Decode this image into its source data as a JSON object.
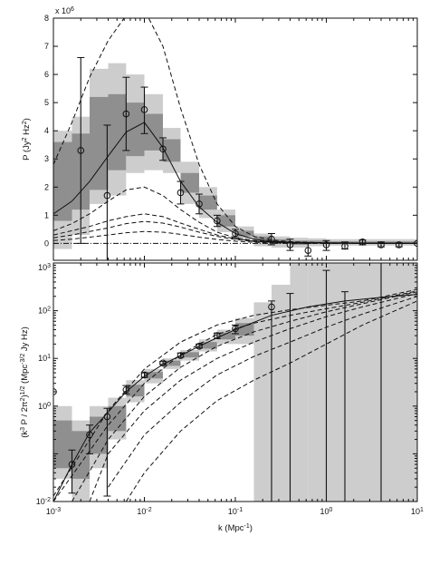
{
  "chart_data": [
    {
      "type": "line",
      "panel": "top",
      "xscale": "log",
      "xlim": [
        0.001,
        10
      ],
      "ylim": [
        -0.6,
        8
      ],
      "exponent_label": "x 10",
      "exponent_sup": "6",
      "ylabel": "P (Jy",
      "ylabel_sup1": "2",
      "ylabel_mid": " Hz",
      "ylabel_sup2": "2",
      "ylabel_end": ")",
      "yticks": [
        0,
        1,
        2,
        3,
        4,
        5,
        6,
        7,
        8
      ],
      "ytick_labels": [
        "0",
        "1",
        "2",
        "3",
        "4",
        "5",
        "6",
        "7",
        "8"
      ],
      "bands": [
        {
          "x0": 0.001,
          "x1": 0.0016,
          "y1": [
            -0.2,
            4.0
          ],
          "y2": [
            0.8,
            3.6
          ]
        },
        {
          "x0": 0.0016,
          "x1": 0.0025,
          "y1": [
            0.3,
            4.5
          ],
          "y2": [
            1.2,
            3.9
          ]
        },
        {
          "x0": 0.0025,
          "x1": 0.004,
          "y1": [
            1.4,
            6.2
          ],
          "y2": [
            1.9,
            5.2
          ]
        },
        {
          "x0": 0.004,
          "x1": 0.0063,
          "y1": [
            1.7,
            6.4
          ],
          "y2": [
            2.6,
            5.3
          ]
        },
        {
          "x0": 0.0063,
          "x1": 0.01,
          "y1": [
            2.5,
            6.0
          ],
          "y2": [
            3.1,
            5.0
          ]
        },
        {
          "x0": 0.01,
          "x1": 0.016,
          "y1": [
            2.6,
            5.3
          ],
          "y2": [
            3.3,
            4.6
          ]
        },
        {
          "x0": 0.016,
          "x1": 0.025,
          "y1": [
            2.5,
            4.1
          ],
          "y2": [
            2.9,
            3.7
          ]
        },
        {
          "x0": 0.025,
          "x1": 0.04,
          "y1": [
            1.4,
            2.9
          ],
          "y2": [
            1.8,
            2.5
          ]
        },
        {
          "x0": 0.04,
          "x1": 0.063,
          "y1": [
            0.9,
            2.0
          ],
          "y2": [
            1.2,
            1.7
          ]
        },
        {
          "x0": 0.063,
          "x1": 0.1,
          "y1": [
            0.4,
            1.2
          ],
          "y2": [
            0.6,
            1.0
          ]
        },
        {
          "x0": 0.1,
          "x1": 0.16,
          "y1": [
            0.15,
            0.6
          ],
          "y2": [
            0.25,
            0.45
          ]
        },
        {
          "x0": 0.16,
          "x1": 0.25,
          "y1": [
            -0.1,
            0.35
          ],
          "y2": [
            0.05,
            0.25
          ]
        },
        {
          "x0": 0.25,
          "x1": 0.4,
          "y1": [
            -0.15,
            0.25
          ],
          "y2": [
            0.0,
            0.15
          ]
        },
        {
          "x0": 0.4,
          "x1": 0.63,
          "y1": [
            -0.15,
            0.2
          ],
          "y2": [
            -0.05,
            0.1
          ]
        },
        {
          "x0": 0.63,
          "x1": 1.0,
          "y1": [
            -0.1,
            0.18
          ],
          "y2": [
            0.0,
            0.1
          ]
        },
        {
          "x0": 1.0,
          "x1": 10,
          "y1": [
            -0.08,
            0.15
          ],
          "y2": [
            -0.02,
            0.07
          ]
        }
      ],
      "points": [
        {
          "x": 0.002,
          "y": 3.3,
          "lo": 0.0,
          "hi": 6.6
        },
        {
          "x": 0.0039,
          "y": 1.7,
          "lo": -0.8,
          "hi": 4.2
        },
        {
          "x": 0.0063,
          "y": 4.6,
          "lo": 3.3,
          "hi": 5.9
        },
        {
          "x": 0.01,
          "y": 4.75,
          "lo": 3.9,
          "hi": 5.55
        },
        {
          "x": 0.016,
          "y": 3.35,
          "lo": 2.95,
          "hi": 3.75
        },
        {
          "x": 0.025,
          "y": 1.8,
          "lo": 1.4,
          "hi": 2.2
        },
        {
          "x": 0.04,
          "y": 1.4,
          "lo": 1.05,
          "hi": 1.75
        },
        {
          "x": 0.063,
          "y": 0.8,
          "lo": 0.6,
          "hi": 1.0
        },
        {
          "x": 0.1,
          "y": 0.35,
          "lo": 0.2,
          "hi": 0.5
        },
        {
          "x": 0.25,
          "y": 0.15,
          "lo": -0.05,
          "hi": 0.35
        },
        {
          "x": 0.4,
          "y": -0.05,
          "lo": -0.25,
          "hi": 0.15
        },
        {
          "x": 0.63,
          "y": -0.25,
          "lo": -0.45,
          "hi": 0.0
        },
        {
          "x": 1.0,
          "y": -0.05,
          "lo": -0.25,
          "hi": 0.1
        },
        {
          "x": 1.6,
          "y": -0.1,
          "lo": -0.2,
          "hi": 0.05
        },
        {
          "x": 2.5,
          "y": 0.05,
          "lo": -0.05,
          "hi": 0.12
        },
        {
          "x": 4.0,
          "y": -0.05,
          "lo": -0.12,
          "hi": 0.05
        },
        {
          "x": 6.3,
          "y": -0.05,
          "lo": -0.12,
          "hi": 0.02
        },
        {
          "x": 10.0,
          "y": 0.0,
          "lo": 0.0,
          "hi": 0.0
        }
      ],
      "model_curves": [
        {
          "style": "solid",
          "x": [
            0.001,
            0.0016,
            0.0025,
            0.004,
            0.0063,
            0.01,
            0.016,
            0.025,
            0.04,
            0.063,
            0.1,
            0.16,
            0.25,
            0.4,
            1.0,
            10
          ],
          "y": [
            1.05,
            1.5,
            2.2,
            3.1,
            3.95,
            4.3,
            3.4,
            2.2,
            1.3,
            0.75,
            0.35,
            0.15,
            0.08,
            0.04,
            0.02,
            0.0
          ]
        },
        {
          "style": "dashed",
          "x": [
            0.001,
            0.0016,
            0.0025,
            0.004,
            0.0063,
            0.01,
            0.016,
            0.025,
            0.04,
            0.063,
            0.1,
            0.16,
            0.25,
            0.4,
            1.0,
            10
          ],
          "y": [
            2.8,
            4.3,
            5.9,
            7.2,
            8.1,
            8.3,
            7.0,
            4.8,
            2.8,
            1.4,
            0.6,
            0.25,
            0.12,
            0.06,
            0.02,
            0.0
          ]
        },
        {
          "style": "dashed",
          "x": [
            0.001,
            0.0016,
            0.0025,
            0.004,
            0.0063,
            0.01,
            0.016,
            0.025,
            0.04,
            0.063,
            0.1,
            0.16,
            0.25,
            0.4,
            1.0,
            10
          ],
          "y": [
            0.45,
            0.7,
            1.05,
            1.5,
            1.9,
            2.0,
            1.7,
            1.2,
            0.75,
            0.4,
            0.2,
            0.1,
            0.06,
            0.03,
            0.01,
            0.0
          ]
        },
        {
          "style": "dashed",
          "x": [
            0.001,
            0.0016,
            0.0025,
            0.004,
            0.0063,
            0.01,
            0.016,
            0.025,
            0.04,
            0.063,
            0.1,
            0.16,
            0.25,
            0.4,
            1.0,
            10
          ],
          "y": [
            0.3,
            0.45,
            0.6,
            0.8,
            0.95,
            1.05,
            0.95,
            0.72,
            0.5,
            0.3,
            0.16,
            0.08,
            0.05,
            0.03,
            0.01,
            0.0
          ]
        },
        {
          "style": "dashed",
          "x": [
            0.001,
            0.0016,
            0.0025,
            0.004,
            0.0063,
            0.01,
            0.016,
            0.025,
            0.04,
            0.063,
            0.1,
            0.16,
            0.25,
            0.4,
            1.0,
            10
          ],
          "y": [
            0.2,
            0.3,
            0.42,
            0.55,
            0.7,
            0.78,
            0.72,
            0.58,
            0.4,
            0.25,
            0.14,
            0.07,
            0.04,
            0.02,
            0.01,
            0.0
          ]
        },
        {
          "style": "dashed",
          "x": [
            0.001,
            0.0016,
            0.0025,
            0.004,
            0.0063,
            0.01,
            0.016,
            0.025,
            0.04,
            0.063,
            0.1,
            0.16,
            0.25,
            0.4,
            1.0,
            10
          ],
          "y": [
            0.1,
            0.15,
            0.22,
            0.3,
            0.38,
            0.42,
            0.4,
            0.32,
            0.22,
            0.14,
            0.08,
            0.04,
            0.02,
            0.01,
            0.0,
            0.0
          ]
        },
        {
          "style": "dashdot",
          "x": [
            0.001,
            10
          ],
          "y": [
            0.0,
            0.0
          ]
        }
      ]
    },
    {
      "type": "line",
      "panel": "bottom",
      "xscale": "log",
      "yscale": "log",
      "xlim": [
        0.001,
        10
      ],
      "ylim": [
        0.01,
        1000
      ],
      "xlabel": "k (Mpc",
      "xlabel_sup": "-1",
      "xlabel_end": ")",
      "ylabel": "(k",
      "ylabel_sup1": "3",
      "ylabel_mid": " P / 2π",
      "ylabel_sup2": "2",
      "ylabel_mid2": ")",
      "ylabel_sup3": "1/2",
      "ylabel_end": " (Mpc",
      "ylabel_sup4": "-3/2",
      "ylabel_tail": " Jy Hz)",
      "xticks": [
        0.001,
        0.01,
        0.1,
        1,
        10
      ],
      "xtick_base": "10",
      "xtick_exps": [
        "-3",
        "-2",
        "-1",
        "0",
        "1"
      ],
      "yticks": [
        0.01,
        1,
        100
      ],
      "ytick_base": "10",
      "ytick_exps": [
        "-2",
        "0",
        "2"
      ],
      "ytop_label_base": "10",
      "ytop_label_exp": "3",
      "ymid_label_base": "10",
      "ymid_label_exp": "1",
      "bands": [
        {
          "x0": 0.001,
          "x1": 0.0016,
          "y1": [
            0.03,
            1.0
          ],
          "y2": [
            0.05,
            0.5
          ]
        },
        {
          "x0": 0.0016,
          "x1": 0.0025,
          "y1": [
            0.01,
            0.5
          ],
          "y2": [
            0.03,
            0.3
          ]
        },
        {
          "x0": 0.0025,
          "x1": 0.004,
          "y1": [
            0.05,
            1.0
          ],
          "y2": [
            0.1,
            0.6
          ]
        },
        {
          "x0": 0.004,
          "x1": 0.0063,
          "y1": [
            0.2,
            1.5
          ],
          "y2": [
            0.3,
            1.0
          ]
        },
        {
          "x0": 0.0063,
          "x1": 0.01,
          "y1": [
            1.2,
            3.5
          ],
          "y2": [
            1.6,
            2.8
          ]
        },
        {
          "x0": 0.01,
          "x1": 0.016,
          "y1": [
            3.0,
            6.0
          ],
          "y2": [
            3.8,
            5.2
          ]
        },
        {
          "x0": 0.016,
          "x1": 0.025,
          "y1": [
            6.0,
            10.0
          ],
          "y2": [
            7.0,
            9.0
          ]
        },
        {
          "x0": 0.025,
          "x1": 0.04,
          "y1": [
            9.0,
            15.0
          ],
          "y2": [
            10.5,
            13.5
          ]
        },
        {
          "x0": 0.04,
          "x1": 0.063,
          "y1": [
            14.0,
            25.0
          ],
          "y2": [
            16.0,
            22.0
          ]
        },
        {
          "x0": 0.063,
          "x1": 0.1,
          "y1": [
            20.0,
            40.0
          ],
          "y2": [
            25.0,
            35.0
          ]
        },
        {
          "x0": 0.1,
          "x1": 0.16,
          "y1": [
            20.0,
            70.0
          ],
          "y2": [
            30.0,
            55.0
          ]
        },
        {
          "x0": 0.16,
          "x1": 0.25,
          "y1": [
            0.01,
            150.0
          ],
          "y2": [
            0.01,
            0.01
          ]
        },
        {
          "x0": 0.25,
          "x1": 0.4,
          "y1": [
            0.01,
            350.0
          ],
          "y2": [
            0.01,
            0.01
          ]
        },
        {
          "x0": 0.4,
          "x1": 0.63,
          "y1": [
            0.01,
            1000.0
          ],
          "y2": [
            0.01,
            0.01
          ]
        },
        {
          "x0": 0.63,
          "x1": 4.0,
          "y1": [
            0.01,
            1000.0
          ],
          "y2": [
            0.01,
            0.01
          ]
        },
        {
          "x0": 4.0,
          "x1": 10,
          "y1": [
            0.01,
            1000.0
          ],
          "y2": [
            0.01,
            0.01
          ]
        }
      ],
      "points": [
        {
          "x": 0.001,
          "y": 2.0,
          "lo": 2.0,
          "hi": 2.0
        },
        {
          "x": 0.0016,
          "y": 0.06,
          "lo": 0.015,
          "hi": 0.12
        },
        {
          "x": 0.0025,
          "y": 0.25,
          "lo": 0.1,
          "hi": 0.4
        },
        {
          "x": 0.0039,
          "y": 0.6,
          "lo": 0.013,
          "hi": 0.9
        },
        {
          "x": 0.0063,
          "y": 2.2,
          "lo": 1.8,
          "hi": 2.7
        },
        {
          "x": 0.01,
          "y": 4.5,
          "lo": 4.0,
          "hi": 5.0
        },
        {
          "x": 0.016,
          "y": 8.0,
          "lo": 7.5,
          "hi": 8.6
        },
        {
          "x": 0.025,
          "y": 11.5,
          "lo": 10.5,
          "hi": 13.0
        },
        {
          "x": 0.04,
          "y": 18.0,
          "lo": 16.5,
          "hi": 20.0
        },
        {
          "x": 0.063,
          "y": 30.0,
          "lo": 26.0,
          "hi": 34.0
        },
        {
          "x": 0.1,
          "y": 42.0,
          "lo": 33.0,
          "hi": 50.0
        },
        {
          "x": 0.25,
          "y": 120.0,
          "lo": 0.01,
          "hi": 160.0
        },
        {
          "x": 0.4,
          "y": 0.01,
          "lo": 0.01,
          "hi": 230.0
        },
        {
          "x": 1.0,
          "y": 0.01,
          "lo": 0.01,
          "hi": 700.0
        },
        {
          "x": 1.6,
          "y": 0.01,
          "lo": 0.01,
          "hi": 250.0
        },
        {
          "x": 4.0,
          "y": 0.01,
          "lo": 0.01,
          "hi": 1000.0
        }
      ],
      "model_curves": [
        {
          "style": "solid",
          "x": [
            0.001,
            0.0016,
            0.0025,
            0.004,
            0.0063,
            0.01,
            0.016,
            0.025,
            0.04,
            0.063,
            0.1,
            0.25,
            0.63,
            1.6,
            4.0,
            10
          ],
          "y": [
            0.01,
            0.06,
            0.28,
            0.75,
            2.0,
            4.2,
            7.5,
            11.5,
            18.0,
            27.0,
            40.0,
            80.0,
            120.0,
            160.0,
            190.0,
            220.0
          ]
        },
        {
          "style": "dashed",
          "x": [
            0.001,
            0.004,
            0.01,
            0.025,
            0.063,
            0.16,
            0.4,
            1.0,
            2.5,
            10
          ],
          "y": [
            0.013,
            0.8,
            6.0,
            22.0,
            50.0,
            80.0,
            105.0,
            130.0,
            160.0,
            280.0
          ]
        },
        {
          "style": "dashed",
          "x": [
            0.001,
            0.004,
            0.01,
            0.025,
            0.063,
            0.16,
            0.4,
            1.0,
            2.5,
            10
          ],
          "y": [
            0.01,
            0.4,
            3.0,
            12.0,
            32.0,
            55.0,
            80.0,
            110.0,
            150.0,
            260.0
          ]
        },
        {
          "style": "dashed",
          "x": [
            0.0016,
            0.004,
            0.01,
            0.025,
            0.063,
            0.16,
            0.4,
            1.0,
            2.5,
            10
          ],
          "y": [
            0.01,
            0.2,
            1.6,
            6.5,
            18.0,
            36.0,
            60.0,
            95.0,
            140.0,
            250.0
          ]
        },
        {
          "style": "dashed",
          "x": [
            0.0025,
            0.004,
            0.01,
            0.025,
            0.063,
            0.16,
            0.4,
            1.0,
            2.5,
            10
          ],
          "y": [
            0.01,
            0.1,
            0.8,
            3.5,
            10.0,
            22.0,
            42.0,
            75.0,
            120.0,
            230.0
          ]
        },
        {
          "style": "dashed",
          "x": [
            0.004,
            0.01,
            0.025,
            0.063,
            0.16,
            0.4,
            1.0,
            2.5,
            10
          ],
          "y": [
            0.02,
            0.25,
            1.2,
            4.5,
            11.0,
            22.0,
            45.0,
            85.0,
            200.0
          ]
        },
        {
          "style": "dashed",
          "x": [
            0.0063,
            0.01,
            0.025,
            0.063,
            0.16,
            0.4,
            1.0,
            2.5,
            10
          ],
          "y": [
            0.01,
            0.04,
            0.3,
            1.3,
            3.5,
            8.0,
            20.0,
            50.0,
            160.0
          ]
        }
      ]
    }
  ]
}
